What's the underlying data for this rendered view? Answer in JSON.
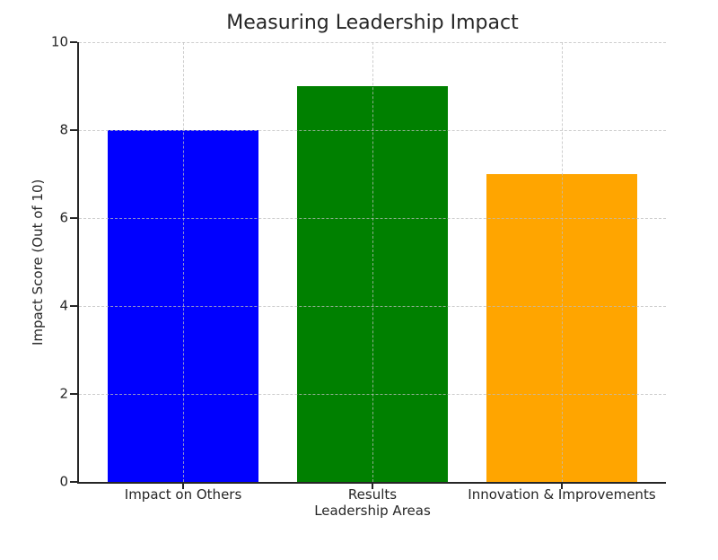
{
  "chart_data": {
    "type": "bar",
    "title": "Measuring Leadership Impact",
    "xlabel": "Leadership Areas",
    "ylabel": "Impact Score (Out of 10)",
    "categories": [
      "Impact on Others",
      "Results",
      "Innovation & Improvements"
    ],
    "values": [
      8,
      9,
      7
    ],
    "bar_colors": [
      "#0000ff",
      "#008000",
      "#ffa500"
    ],
    "ylim": [
      0,
      10
    ],
    "yticks": [
      0,
      2,
      4,
      6,
      8,
      10
    ],
    "grid": "dashed gridlines on both axes, drawn above bars",
    "legend": "none",
    "bar_width_fraction": 0.8,
    "x_margin_units": 0.55,
    "colors": {
      "grid": "#d9d9d9",
      "spine": "#262626",
      "text": "#262626",
      "background": "#ffffff"
    }
  }
}
